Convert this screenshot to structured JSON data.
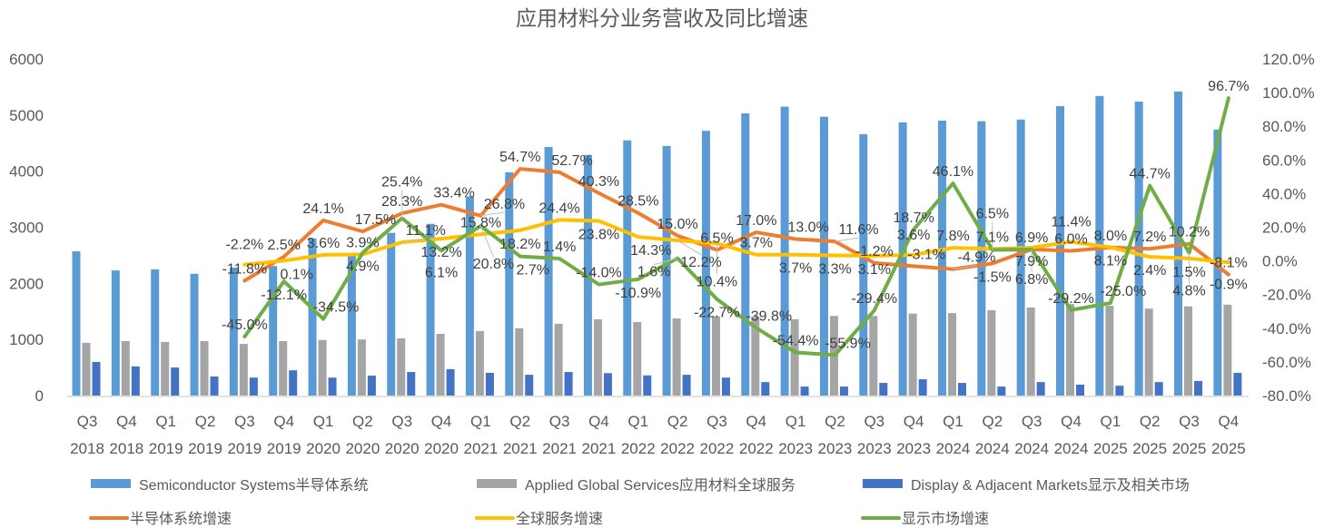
{
  "chart_data": {
    "type": "bar",
    "title": "应用材料分业务营收及同比增速",
    "categories_quarter": [
      "Q3",
      "Q4",
      "Q1",
      "Q2",
      "Q3",
      "Q4",
      "Q1",
      "Q2",
      "Q3",
      "Q4",
      "Q1",
      "Q2",
      "Q3",
      "Q4",
      "Q1",
      "Q2",
      "Q3",
      "Q4",
      "Q1",
      "Q2",
      "Q3",
      "Q4",
      "Q1",
      "Q2",
      "Q3",
      "Q4",
      "Q1",
      "Q2",
      "Q3",
      "Q4"
    ],
    "categories_year": [
      "2018",
      "2018",
      "2019",
      "2019",
      "2019",
      "2019",
      "2020",
      "2020",
      "2020",
      "2020",
      "2021",
      "2021",
      "2021",
      "2021",
      "2022",
      "2022",
      "2022",
      "2022",
      "2023",
      "2023",
      "2023",
      "2023",
      "2024",
      "2024",
      "2024",
      "2024",
      "2025",
      "2025",
      "2025",
      "2025"
    ],
    "left_axis": {
      "min": 0,
      "max": 6000,
      "ticks": [
        "0",
        "1000",
        "2000",
        "3000",
        "4000",
        "5000",
        "6000"
      ]
    },
    "right_axis": {
      "min": -80,
      "max": 120,
      "ticks": [
        "-80.0%",
        "-60.0%",
        "-40.0%",
        "-20.0%",
        "0.0%",
        "20.0%",
        "40.0%",
        "60.0%",
        "80.0%",
        "100.0%",
        "120.0%"
      ]
    },
    "bar_series": [
      {
        "name": "Semiconductor Systems半导体系统",
        "color": "#5b9bd5",
        "values": [
          2570,
          2230,
          2250,
          2170,
          2280,
          2310,
          2800,
          2490,
          2900,
          3060,
          3550,
          3980,
          4430,
          4290,
          4550,
          4450,
          4720,
          5030,
          5150,
          4970,
          4660,
          4870,
          4900,
          4890,
          4920,
          5160,
          5340,
          5240,
          5420,
          4740
        ]
      },
      {
        "name": "Applied Global Services应用材料全球服务",
        "color": "#a5a5a5",
        "values": [
          940,
          970,
          955,
          970,
          920,
          970,
          990,
          1000,
          1020,
          1100,
          1150,
          1200,
          1280,
          1360,
          1310,
          1375,
          1410,
          1410,
          1360,
          1420,
          1420,
          1460,
          1470,
          1520,
          1570,
          1630,
          1600,
          1550,
          1590,
          1620
        ]
      },
      {
        "name": "Display & Adjacent Markets显示及相关市场",
        "color": "#4472c4",
        "values": [
          600,
          520,
          500,
          340,
          320,
          450,
          320,
          355,
          420,
          470,
          405,
          370,
          420,
          400,
          360,
          370,
          320,
          240,
          160,
          160,
          225,
          290,
          225,
          160,
          240,
          195,
          175,
          240,
          260,
          405
        ]
      }
    ],
    "line_series": [
      {
        "name": "半导体系统增速",
        "color": "#ed7d31",
        "start_index": 4,
        "values": [
          -11.8,
          2.5,
          24.1,
          17.5,
          28.3,
          33.4,
          26.8,
          54.7,
          52.7,
          40.3,
          28.5,
          15.0,
          6.5,
          17.0,
          13.0,
          11.6,
          -1.2,
          -3.1,
          -4.9,
          -1.5,
          6.9,
          6.0,
          8.0,
          7.2,
          10.2,
          -8.1
        ]
      },
      {
        "name": "全球服务增速",
        "color": "#ffc000",
        "start_index": 4,
        "values": [
          -2.2,
          0.1,
          3.6,
          3.9,
          11.1,
          13.2,
          15.8,
          18.2,
          24.4,
          23.8,
          14.3,
          12.2,
          10.4,
          3.7,
          3.7,
          3.3,
          3.1,
          3.6,
          7.8,
          7.1,
          7.9,
          11.4,
          8.1,
          2.4,
          1.5,
          -0.9
        ]
      },
      {
        "name": "显示市场增速",
        "color": "#70ad47",
        "start_index": 4,
        "values": [
          -45.0,
          -12.1,
          -34.5,
          4.9,
          25.4,
          6.1,
          20.8,
          2.7,
          1.4,
          -14.0,
          -10.9,
          1.6,
          -22.7,
          -39.8,
          -54.4,
          -55.9,
          -29.4,
          18.7,
          46.1,
          6.5,
          6.8,
          -29.2,
          -25.0,
          44.7,
          4.8,
          96.7
        ]
      }
    ],
    "legend_position": "bottom",
    "grid": false
  }
}
